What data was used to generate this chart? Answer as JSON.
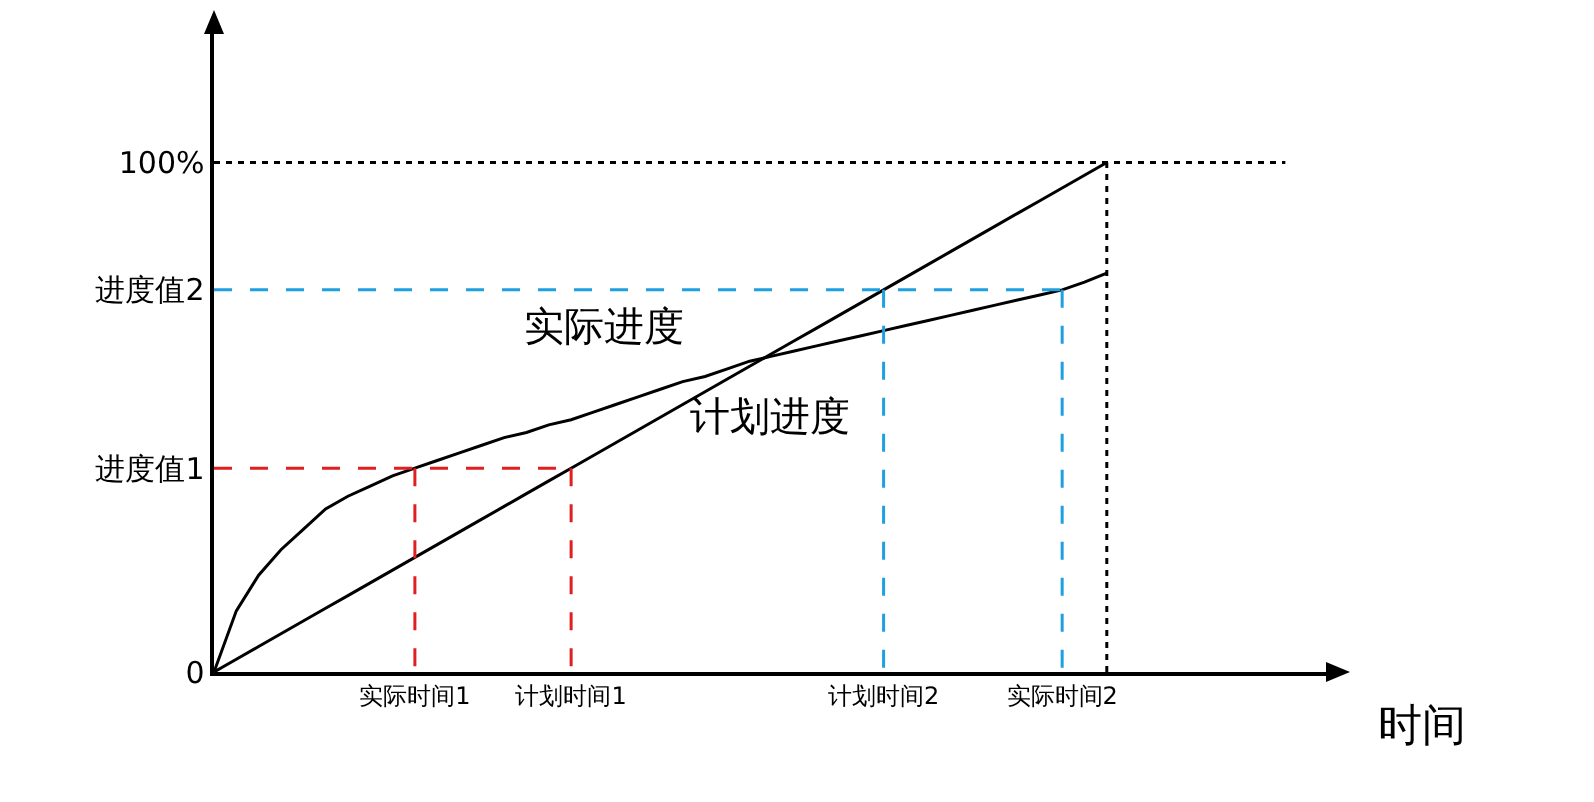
{
  "chart_data": {
    "type": "line",
    "xlabel": "时间",
    "categories": [
      null,
      null,
      null,
      null,
      null,
      null,
      null,
      null,
      null,
      "实际时间1",
      null,
      null,
      null,
      null,
      null,
      null,
      "计划时间1",
      null,
      null,
      null,
      null,
      null,
      null,
      null,
      null,
      null,
      null,
      null,
      null,
      null,
      "计划时间2",
      null,
      null,
      null,
      null,
      null,
      null,
      null,
      "实际时间2",
      null,
      null,
      null,
      null,
      null,
      null,
      null,
      null,
      null,
      null
    ],
    "ylim": [
      0,
      126
    ],
    "yticks": [
      {
        "value": 0,
        "label": "0"
      },
      {
        "value": 40,
        "label": "进度值1"
      },
      {
        "value": 75,
        "label": "进度值2"
      },
      {
        "value": 100,
        "label": "100%"
      }
    ],
    "grid": false,
    "marker": "none",
    "series": [
      {
        "color": "#000000",
        "line_style": "solid",
        "values": [
          0,
          12,
          19,
          24,
          28,
          32,
          34.5,
          36.5,
          38.5,
          40,
          41.5,
          43,
          44.5,
          46,
          47,
          48.5,
          49.5,
          51,
          52.5,
          54,
          55.5,
          57,
          58,
          59.5,
          61,
          62,
          63,
          64,
          65,
          66,
          67,
          68,
          69,
          70,
          71,
          72,
          73,
          74,
          75,
          76.5,
          78.3,
          null,
          null,
          null,
          null,
          null,
          null,
          null,
          null
        ]
      },
      {
        "color": "#000000",
        "line_style": "solid",
        "values": [
          0,
          2.5,
          5,
          7.5,
          10,
          12.5,
          15,
          17.5,
          20,
          22.5,
          25,
          27.5,
          30,
          32.5,
          35,
          37.5,
          40,
          42.5,
          45,
          47.5,
          50,
          52.5,
          55,
          57.5,
          60,
          62.5,
          65,
          67.5,
          70,
          72.5,
          75,
          77.5,
          80,
          82.5,
          85,
          87.5,
          90,
          92.5,
          95,
          97.5,
          100,
          null,
          null,
          null,
          null,
          null,
          null,
          null,
          null
        ]
      },
      {
        "color": "#000000",
        "line_style": "dotted",
        "values": [
          100,
          100,
          100,
          100,
          100,
          100,
          100,
          100,
          100,
          100,
          100,
          100,
          100,
          100,
          100,
          100,
          100,
          100,
          100,
          100,
          100,
          100,
          100,
          100,
          100,
          100,
          100,
          100,
          100,
          100,
          100,
          100,
          100,
          100,
          100,
          100,
          100,
          100,
          100,
          100,
          100,
          100,
          100,
          100,
          100,
          100,
          100,
          100,
          100
        ]
      },
      {
        "color": "#e02020",
        "line_style": "dashed",
        "values": [
          40,
          40,
          40,
          40,
          40,
          40,
          40,
          40,
          40,
          40,
          40,
          40,
          40,
          40,
          40,
          40,
          40,
          null,
          null,
          null,
          null,
          null,
          null,
          null,
          null,
          null,
          null,
          null,
          null,
          null,
          null,
          null,
          null,
          null,
          null,
          null,
          null,
          null,
          null,
          null,
          null,
          null,
          null,
          null,
          null,
          null,
          null,
          null,
          null
        ]
      },
      {
        "color": "#e02020",
        "line_style": "dashed",
        "x": [
          "实际时间1",
          "实际时间1"
        ],
        "values": [
          40,
          0
        ]
      },
      {
        "color": "#e02020",
        "line_style": "dashed",
        "x": [
          "计划时间1",
          "计划时间1"
        ],
        "values": [
          40,
          0
        ]
      },
      {
        "color": "#1ea0e0",
        "line_style": "dashed",
        "values": [
          75,
          75,
          75,
          75,
          75,
          75,
          75,
          75,
          75,
          75,
          75,
          75,
          75,
          75,
          75,
          75,
          75,
          75,
          75,
          75,
          75,
          75,
          75,
          75,
          75,
          75,
          75,
          75,
          75,
          75,
          75,
          75,
          75,
          75,
          75,
          75,
          75,
          75,
          75,
          null,
          null,
          null,
          null,
          null,
          null,
          null,
          null,
          null,
          null
        ]
      },
      {
        "color": "#1ea0e0",
        "line_style": "dashed",
        "x": [
          "计划时间2",
          "计划时间2"
        ],
        "values": [
          75,
          0
        ]
      },
      {
        "color": "#1ea0e0",
        "line_style": "dashed",
        "x": [
          "实际时间2",
          "实际时间2"
        ],
        "values": [
          75,
          0
        ]
      }
    ],
    "annotations": [
      "实际进度",
      "计划进度"
    ]
  }
}
